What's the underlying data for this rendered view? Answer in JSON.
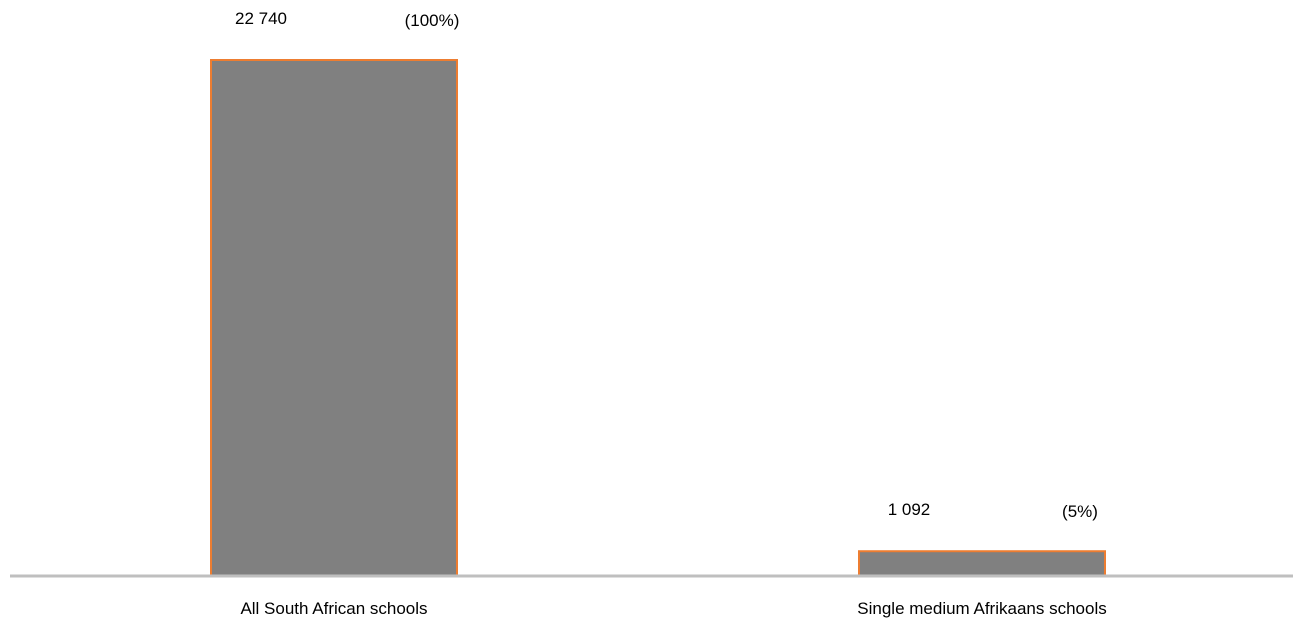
{
  "chart_data": {
    "type": "bar",
    "categories": [
      "All South African schools",
      "Single medium Afrikaans schools"
    ],
    "values": [
      22740,
      1092
    ],
    "value_labels": [
      "22 740",
      "1 092"
    ],
    "percent_labels": [
      "(100%)",
      "(5%)"
    ],
    "title": "",
    "xlabel": "",
    "ylabel": "",
    "ylim": [
      0,
      22740
    ],
    "grid": false,
    "legend": "none"
  },
  "colors": {
    "bar_fill": "#808080",
    "bar_edge": "#ed7d31",
    "axis": "#bfbfbf",
    "text": "#000000"
  }
}
